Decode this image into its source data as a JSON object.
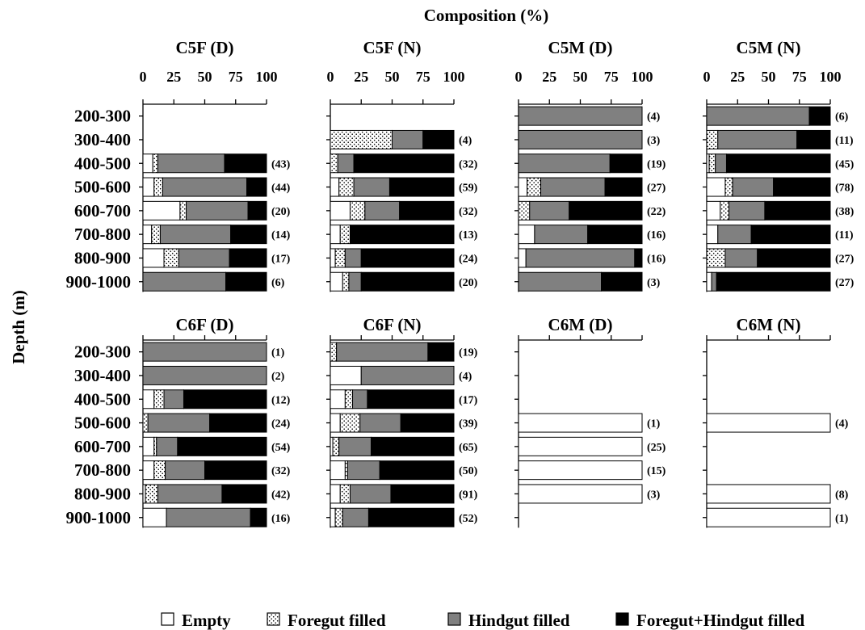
{
  "chart_data": {
    "type": "bar",
    "orientation": "horizontal",
    "stacked": true,
    "title": "Composition (%)",
    "ylabel": "Depth (m)",
    "xlim": [
      0,
      100
    ],
    "xticks": [
      "0",
      "25",
      "50",
      "75",
      "100"
    ],
    "categories": [
      "200-300",
      "300-400",
      "400-500",
      "500-600",
      "600-700",
      "700-800",
      "800-900",
      "900-1000"
    ],
    "segment_order": [
      "Empty",
      "Foregut filled",
      "Hindgut filled",
      "Foregut+Hindgut filled"
    ],
    "legend": [
      {
        "name": "Empty",
        "fill": "#ffffff",
        "pattern": "none"
      },
      {
        "name": "Foregut filled",
        "fill": "#ffffff",
        "pattern": "dots"
      },
      {
        "name": "Hindgut filled",
        "fill": "#808080",
        "pattern": "none"
      },
      {
        "name": "Foregut+Hindgut filled",
        "fill": "#000000",
        "pattern": "none"
      }
    ],
    "legend_position": "bottom",
    "colors": {
      "empty": "#ffffff",
      "hindgut": "#808080",
      "both": "#000000",
      "outline": "#000000"
    },
    "panels": [
      {
        "title": "C5F (D)",
        "bars": [
          null,
          null,
          {
            "values": [
              8,
              4,
              54,
              34
            ],
            "n": "(43)"
          },
          {
            "values": [
              9,
              7,
              68,
              16
            ],
            "n": "(44)"
          },
          {
            "values": [
              30,
              5,
              50,
              15
            ],
            "n": "(20)"
          },
          {
            "values": [
              7,
              7,
              57,
              29
            ],
            "n": "(14)"
          },
          {
            "values": [
              17,
              12,
              41,
              30
            ],
            "n": "(17)"
          },
          {
            "values": [
              0,
              0,
              67,
              33
            ],
            "n": "(6)"
          }
        ]
      },
      {
        "title": "C5F (N)",
        "bars": [
          null,
          {
            "values": [
              0,
              50,
              25,
              25
            ],
            "n": "(4)"
          },
          {
            "values": [
              0,
              6,
              13,
              81
            ],
            "n": "(32)"
          },
          {
            "values": [
              7,
              12,
              29,
              52
            ],
            "n": "(59)"
          },
          {
            "values": [
              16,
              12,
              28,
              44
            ],
            "n": "(32)"
          },
          {
            "values": [
              8,
              8,
              0,
              84
            ],
            "n": "(13)"
          },
          {
            "values": [
              4,
              8,
              13,
              75
            ],
            "n": "(24)"
          },
          {
            "values": [
              10,
              5,
              10,
              75
            ],
            "n": "(20)"
          }
        ]
      },
      {
        "title": "C5M (D)",
        "bars": [
          {
            "values": [
              0,
              0,
              100,
              0
            ],
            "n": "(4)"
          },
          {
            "values": [
              0,
              0,
              100,
              0
            ],
            "n": "(3)"
          },
          {
            "values": [
              0,
              0,
              74,
              26
            ],
            "n": "(19)"
          },
          {
            "values": [
              7,
              11,
              52,
              30
            ],
            "n": "(27)"
          },
          {
            "values": [
              0,
              9,
              32,
              59
            ],
            "n": "(22)"
          },
          {
            "values": [
              13,
              0,
              43,
              44
            ],
            "n": "(16)"
          },
          {
            "values": [
              6,
              0,
              88,
              6
            ],
            "n": "(16)"
          },
          {
            "values": [
              0,
              0,
              67,
              33
            ],
            "n": "(3)"
          }
        ]
      },
      {
        "title": "C5M (N)",
        "bars": [
          {
            "values": [
              0,
              0,
              83,
              17
            ],
            "n": "(6)"
          },
          {
            "values": [
              0,
              9,
              64,
              27
            ],
            "n": "(11)"
          },
          {
            "values": [
              2,
              5,
              9,
              84
            ],
            "n": "(45)"
          },
          {
            "values": [
              15,
              6,
              33,
              46
            ],
            "n": "(78)"
          },
          {
            "values": [
              11,
              7,
              29,
              53
            ],
            "n": "(38)"
          },
          {
            "values": [
              9,
              0,
              27,
              64
            ],
            "n": "(11)"
          },
          {
            "values": [
              0,
              15,
              26,
              59
            ],
            "n": "(27)"
          },
          {
            "values": [
              4,
              0,
              4,
              92
            ],
            "n": "(27)"
          }
        ]
      },
      {
        "title": "C6F (D)",
        "bars": [
          {
            "values": [
              0,
              0,
              100,
              0
            ],
            "n": "(1)"
          },
          {
            "values": [
              0,
              0,
              100,
              0
            ],
            "n": "(2)"
          },
          {
            "values": [
              9,
              8,
              16,
              67
            ],
            "n": "(12)"
          },
          {
            "values": [
              0,
              4,
              50,
              46
            ],
            "n": "(24)"
          },
          {
            "values": [
              9,
              2,
              17,
              72
            ],
            "n": "(54)"
          },
          {
            "values": [
              9,
              9,
              32,
              50
            ],
            "n": "(32)"
          },
          {
            "values": [
              2,
              10,
              52,
              36
            ],
            "n": "(42)"
          },
          {
            "values": [
              19,
              0,
              68,
              13
            ],
            "n": "(16)"
          }
        ]
      },
      {
        "title": "C6F (N)",
        "bars": [
          {
            "values": [
              0,
              5,
              74,
              21
            ],
            "n": "(19)"
          },
          {
            "values": [
              25,
              0,
              75,
              0
            ],
            "n": "(4)"
          },
          {
            "values": [
              12,
              6,
              12,
              70
            ],
            "n": "(17)"
          },
          {
            "values": [
              8,
              16,
              33,
              43
            ],
            "n": "(39)"
          },
          {
            "values": [
              2,
              5,
              26,
              67
            ],
            "n": "(65)"
          },
          {
            "values": [
              12,
              2,
              26,
              60
            ],
            "n": "(50)"
          },
          {
            "values": [
              8,
              8,
              33,
              51
            ],
            "n": "(91)"
          },
          {
            "values": [
              4,
              6,
              21,
              69
            ],
            "n": "(52)"
          }
        ]
      },
      {
        "title": "C6M (D)",
        "bars": [
          null,
          null,
          null,
          {
            "values": [
              100,
              0,
              0,
              0
            ],
            "n": "(1)"
          },
          {
            "values": [
              100,
              0,
              0,
              0
            ],
            "n": "(25)"
          },
          {
            "values": [
              100,
              0,
              0,
              0
            ],
            "n": "(15)"
          },
          {
            "values": [
              100,
              0,
              0,
              0
            ],
            "n": "(3)"
          },
          null
        ]
      },
      {
        "title": "C6M (N)",
        "bars": [
          null,
          null,
          null,
          {
            "values": [
              100,
              0,
              0,
              0
            ],
            "n": "(4)"
          },
          null,
          null,
          {
            "values": [
              100,
              0,
              0,
              0
            ],
            "n": "(8)"
          },
          {
            "values": [
              100,
              0,
              0,
              0
            ],
            "n": "(1)"
          }
        ]
      }
    ]
  }
}
